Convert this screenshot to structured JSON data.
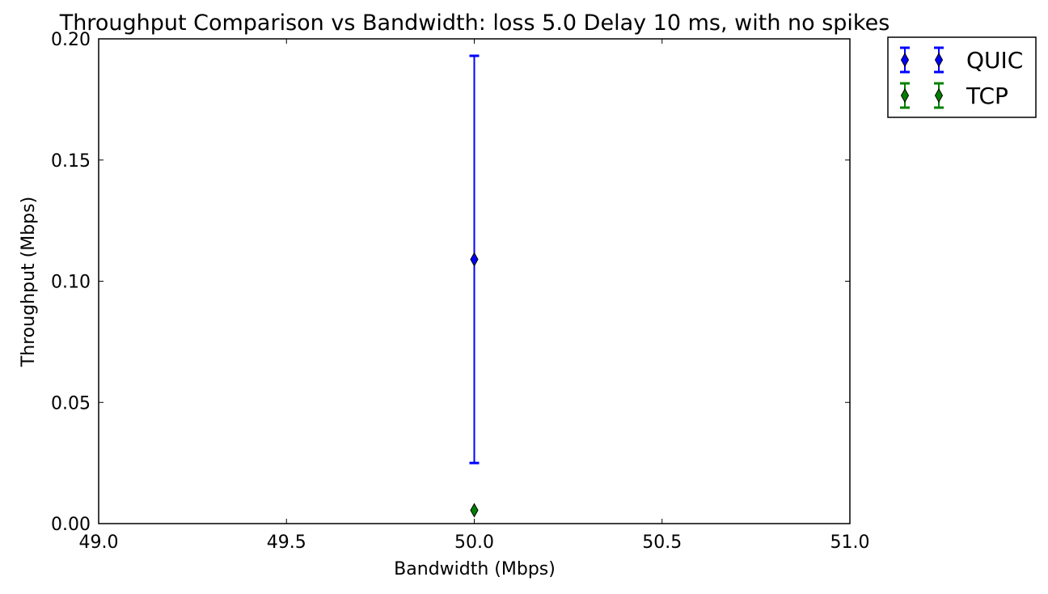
{
  "chart_data": {
    "type": "errorbar",
    "title": "Throughput Comparison vs Bandwidth: loss 5.0 Delay 10 ms, with no spikes",
    "xlabel": "Bandwidth (Mbps)",
    "ylabel": "Throughput (Mbps)",
    "xlim": [
      49.0,
      51.0
    ],
    "ylim": [
      0.0,
      0.2
    ],
    "xticks": [
      49.0,
      49.5,
      50.0,
      50.5,
      51.0
    ],
    "xtick_labels": [
      "49.0",
      "49.5",
      "50.0",
      "50.5",
      "51.0"
    ],
    "yticks": [
      0.0,
      0.05,
      0.1,
      0.15,
      0.2
    ],
    "ytick_labels": [
      "0.00",
      "0.05",
      "0.10",
      "0.15",
      "0.20"
    ],
    "grid": false,
    "legend_position": "outside-top-right",
    "series": [
      {
        "name": "QUIC",
        "color": "#0000ff",
        "marker": "thin-diamond",
        "points": [
          {
            "x": 50.0,
            "y": 0.109,
            "ylow": 0.025,
            "yhigh": 0.193
          }
        ]
      },
      {
        "name": "TCP",
        "color": "#008000",
        "marker": "thin-diamond",
        "points": [
          {
            "x": 50.0,
            "y": 0.0055,
            "ylow": 0.0055,
            "yhigh": 0.0055
          }
        ]
      }
    ]
  }
}
